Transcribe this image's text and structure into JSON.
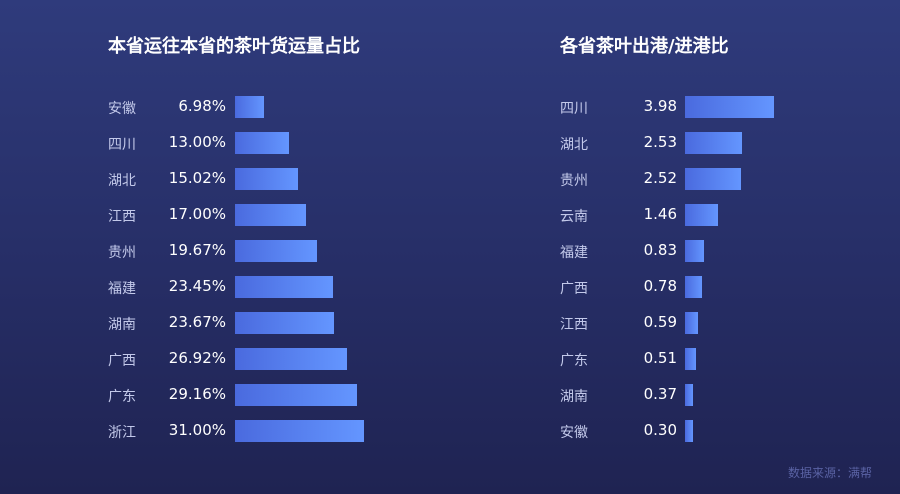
{
  "chart_data": [
    {
      "type": "bar",
      "orientation": "horizontal",
      "title": "本省运往本省的茶叶货运量占比",
      "unit": "%",
      "categories": [
        "安徽",
        "四川",
        "湖北",
        "江西",
        "贵州",
        "福建",
        "湖南",
        "广西",
        "广东",
        "浙江"
      ],
      "values": [
        6.98,
        13.0,
        15.02,
        17.0,
        19.67,
        23.45,
        23.67,
        26.92,
        29.16,
        31.0
      ],
      "labels": [
        "6.98%",
        "13.00%",
        "15.02%",
        "17.00%",
        "19.67%",
        "23.45%",
        "23.67%",
        "26.92%",
        "29.16%",
        "31.00%"
      ]
    },
    {
      "type": "bar",
      "orientation": "horizontal",
      "title": "各省茶叶出港/进港比",
      "categories": [
        "四川",
        "湖北",
        "贵州",
        "云南",
        "福建",
        "广西",
        "江西",
        "广东",
        "湖南",
        "安徽"
      ],
      "values": [
        3.98,
        2.53,
        2.52,
        1.46,
        0.83,
        0.78,
        0.59,
        0.51,
        0.37,
        0.3
      ],
      "labels": [
        "3.98",
        "2.53",
        "2.52",
        "1.46",
        "0.83",
        "0.78",
        "0.59",
        "0.51",
        "0.37",
        "0.30"
      ]
    }
  ],
  "source": "数据来源：满帮",
  "colors": {
    "bar_start": "#4a6ade",
    "bar_end": "#6496ff",
    "label": "#c3c9ea"
  }
}
